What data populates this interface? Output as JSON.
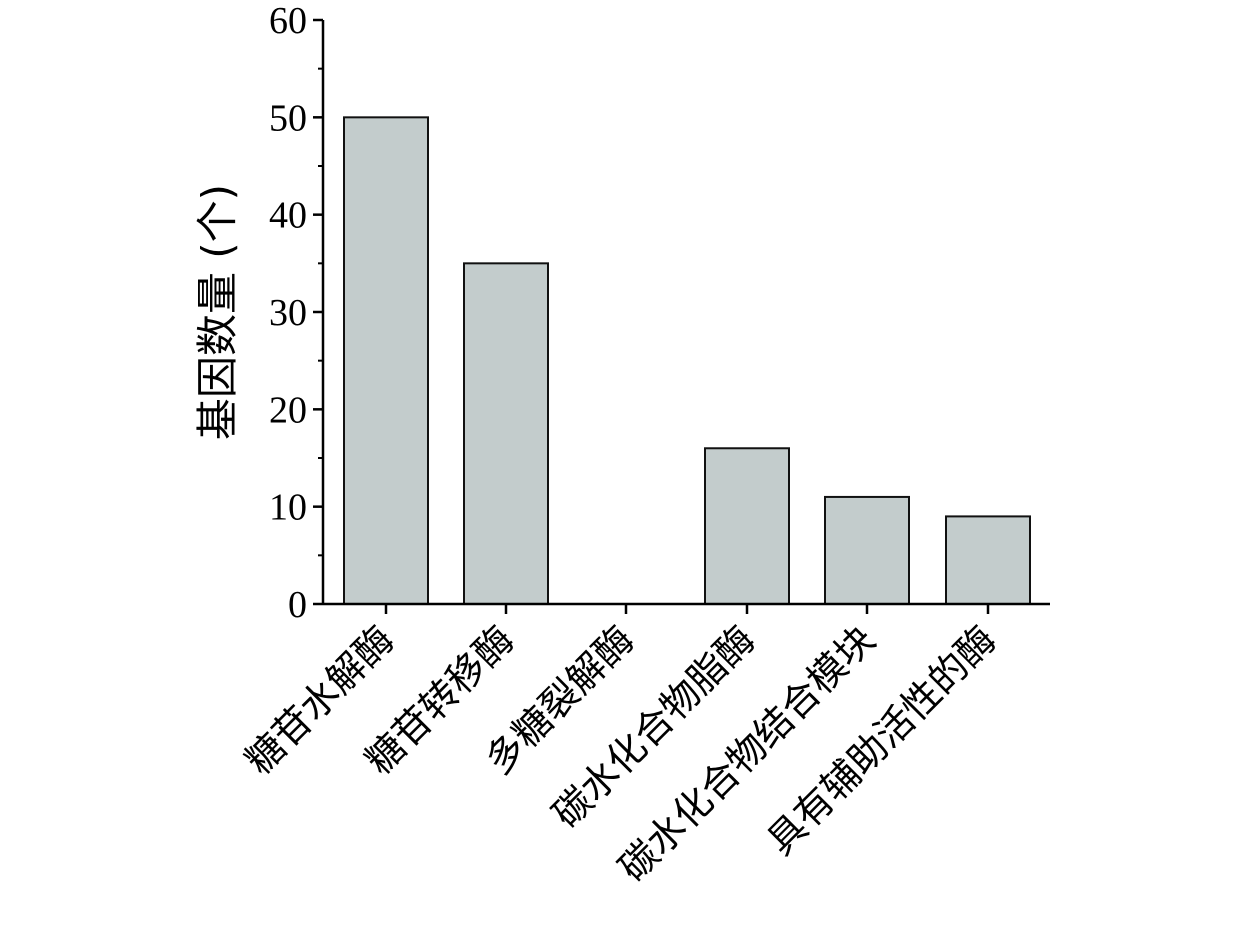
{
  "chart_data": {
    "type": "bar",
    "title": "",
    "xlabel": "",
    "ylabel": "基因数量 (个)",
    "ylim": [
      0,
      60
    ],
    "yticks": [
      0,
      10,
      20,
      30,
      40,
      50,
      60
    ],
    "grid": false,
    "categories": [
      "糖苷水解酶",
      "糖苷转移酶",
      "多糖裂解酶",
      "碳水化合物脂酶",
      "碳水化合物结合模块",
      "具有辅助活性的酶"
    ],
    "values": [
      50,
      35,
      0,
      16,
      11,
      9
    ],
    "bar_color": "#c3cccc",
    "bar_edge_color": "#111111"
  }
}
